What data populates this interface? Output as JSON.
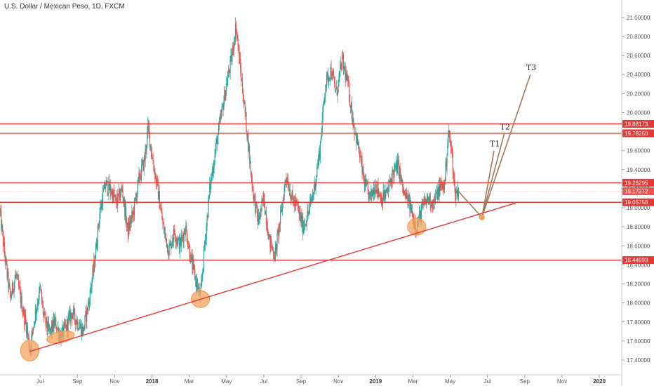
{
  "chart_data": {
    "type": "candlestick",
    "title": "U.S. Dollar / Mexican Peso, 1D, FXCM",
    "ylim": [
      17.26,
      21.08
    ],
    "y_ticks": [
      "17.40000",
      "17.60000",
      "17.80000",
      "18.00000",
      "18.20000",
      "18.40000",
      "18.60000",
      "18.80000",
      "19.00000",
      "19.20000",
      "19.40000",
      "19.60000",
      "19.80000",
      "20.00000",
      "20.20000",
      "20.40000",
      "20.60000",
      "20.80000",
      "21.00000"
    ],
    "x_ticks": [
      {
        "label": "Jul",
        "t": 1.0,
        "bold": false
      },
      {
        "label": "Sep",
        "t": 3.0,
        "bold": false
      },
      {
        "label": "Nov",
        "t": 5.0,
        "bold": false
      },
      {
        "label": "2018",
        "t": 7.0,
        "bold": true
      },
      {
        "label": "Mar",
        "t": 9.0,
        "bold": false
      },
      {
        "label": "May",
        "t": 11.0,
        "bold": false
      },
      {
        "label": "Jul",
        "t": 13.0,
        "bold": false
      },
      {
        "label": "Sep",
        "t": 15.0,
        "bold": false
      },
      {
        "label": "Nov",
        "t": 17.0,
        "bold": false
      },
      {
        "label": "2019",
        "t": 19.0,
        "bold": true
      },
      {
        "label": "Mar",
        "t": 21.0,
        "bold": false
      },
      {
        "label": "May",
        "t": 23.0,
        "bold": false
      },
      {
        "label": "Jul",
        "t": 25.0,
        "bold": false
      },
      {
        "label": "Sep",
        "t": 27.0,
        "bold": false
      },
      {
        "label": "Nov",
        "t": 29.0,
        "bold": false
      },
      {
        "label": "2020",
        "t": 31.0,
        "bold": true
      }
    ],
    "xlim": [
      -1.15,
      32.2
    ],
    "horizontal_levels": [
      {
        "label": "19.88173",
        "value": 19.88173
      },
      {
        "label": "19.78260",
        "value": 19.7826
      },
      {
        "label": "19.26295",
        "value": 19.26295
      },
      {
        "label": "19.05758",
        "value": 19.05758
      },
      {
        "label": "18.44993",
        "value": 18.44993
      }
    ],
    "current_price": {
      "label": "19.17372",
      "value": 19.17372
    },
    "trendline": {
      "from": {
        "t": 0.45,
        "y": 17.49
      },
      "to": {
        "t": 26.5,
        "y": 19.05
      }
    },
    "highlight_circles": [
      {
        "t": 0.45,
        "y": 17.5
      },
      {
        "t": 2.1,
        "y": 17.64
      },
      {
        "t": 9.6,
        "y": 18.04
      },
      {
        "t": 21.2,
        "y": 18.8
      }
    ],
    "price_path": [
      [
        -1.15,
        18.95
      ],
      [
        -0.9,
        18.5
      ],
      [
        -0.6,
        18.05
      ],
      [
        -0.3,
        18.3
      ],
      [
        0.0,
        18.0
      ],
      [
        0.3,
        17.72
      ],
      [
        0.45,
        17.5
      ],
      [
        0.7,
        17.85
      ],
      [
        1.0,
        18.15
      ],
      [
        1.2,
        17.85
      ],
      [
        1.5,
        17.68
      ],
      [
        1.8,
        17.8
      ],
      [
        2.1,
        17.64
      ],
      [
        2.4,
        17.75
      ],
      [
        2.7,
        17.9
      ],
      [
        3.0,
        17.8
      ],
      [
        3.3,
        17.7
      ],
      [
        3.6,
        18.0
      ],
      [
        3.9,
        18.4
      ],
      [
        4.2,
        18.95
      ],
      [
        4.5,
        19.25
      ],
      [
        4.8,
        19.18
      ],
      [
        5.1,
        19.05
      ],
      [
        5.4,
        19.2
      ],
      [
        5.7,
        18.75
      ],
      [
        6.0,
        18.95
      ],
      [
        6.3,
        19.3
      ],
      [
        6.6,
        19.5
      ],
      [
        6.8,
        19.85
      ],
      [
        7.0,
        19.55
      ],
      [
        7.3,
        19.2
      ],
      [
        7.6,
        18.8
      ],
      [
        7.9,
        18.55
      ],
      [
        8.2,
        18.75
      ],
      [
        8.5,
        18.6
      ],
      [
        8.8,
        18.8
      ],
      [
        9.1,
        18.45
      ],
      [
        9.4,
        18.2
      ],
      [
        9.6,
        18.05
      ],
      [
        9.8,
        18.55
      ],
      [
        10.1,
        19.2
      ],
      [
        10.4,
        19.6
      ],
      [
        10.7,
        19.95
      ],
      [
        11.0,
        20.3
      ],
      [
        11.3,
        20.6
      ],
      [
        11.5,
        20.92
      ],
      [
        11.8,
        20.35
      ],
      [
        12.1,
        19.8
      ],
      [
        12.4,
        19.2
      ],
      [
        12.7,
        18.85
      ],
      [
        13.0,
        19.1
      ],
      [
        13.3,
        18.65
      ],
      [
        13.6,
        18.5
      ],
      [
        13.9,
        18.9
      ],
      [
        14.2,
        19.35
      ],
      [
        14.5,
        19.1
      ],
      [
        14.8,
        19.0
      ],
      [
        15.1,
        18.8
      ],
      [
        15.4,
        18.95
      ],
      [
        15.7,
        19.2
      ],
      [
        16.0,
        19.6
      ],
      [
        16.3,
        20.3
      ],
      [
        16.6,
        20.45
      ],
      [
        16.9,
        20.2
      ],
      [
        17.2,
        20.55
      ],
      [
        17.5,
        20.3
      ],
      [
        17.8,
        19.9
      ],
      [
        18.1,
        19.6
      ],
      [
        18.4,
        19.25
      ],
      [
        18.7,
        19.1
      ],
      [
        19.0,
        19.25
      ],
      [
        19.3,
        19.1
      ],
      [
        19.6,
        19.15
      ],
      [
        19.9,
        19.35
      ],
      [
        20.2,
        19.45
      ],
      [
        20.5,
        19.15
      ],
      [
        20.8,
        19.05
      ],
      [
        21.0,
        18.9
      ],
      [
        21.2,
        18.8
      ],
      [
        21.5,
        19.0
      ],
      [
        21.8,
        19.1
      ],
      [
        22.1,
        19.05
      ],
      [
        22.4,
        19.2
      ],
      [
        22.7,
        19.25
      ],
      [
        22.9,
        19.8
      ],
      [
        23.1,
        19.55
      ],
      [
        23.25,
        19.15
      ],
      [
        23.45,
        19.17
      ]
    ],
    "projection": [
      {
        "label": "",
        "from": {
          "t": 23.45,
          "y": 19.17
        },
        "to": {
          "t": 24.7,
          "y": 18.9
        }
      },
      {
        "label": "T1",
        "from": {
          "t": 24.7,
          "y": 18.9
        },
        "to": {
          "t": 25.35,
          "y": 19.6
        }
      },
      {
        "label": "T2",
        "from": {
          "t": 24.7,
          "y": 18.9
        },
        "to": {
          "t": 25.9,
          "y": 19.78
        }
      },
      {
        "label": "T3",
        "from": {
          "t": 24.7,
          "y": 18.9
        },
        "to": {
          "t": 27.3,
          "y": 20.4
        }
      }
    ],
    "colors": {
      "up": "#26a69a",
      "down": "#ef5350",
      "level": "#e53935",
      "trendline": "#e53935",
      "projection": "#a0785a",
      "highlight": "#f7a35c",
      "axis_text": "#555555"
    }
  }
}
